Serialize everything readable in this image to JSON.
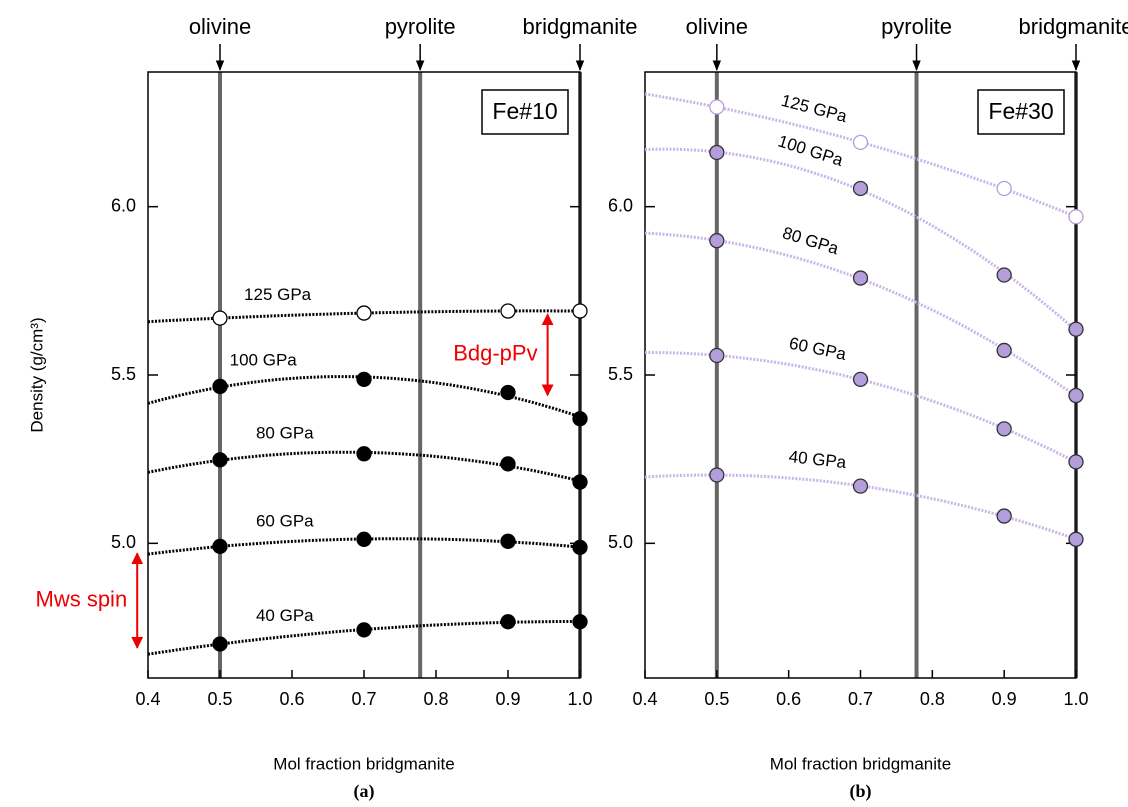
{
  "chart_data": [
    {
      "type": "line",
      "panel_label": "Fe#10",
      "caption": "(a)",
      "xlabel": "Mol fraction bridgmanite",
      "ylabel": "Density (g/cm³)",
      "x": [
        0.5,
        0.7,
        0.9,
        1.0
      ],
      "series": [
        {
          "name": "125 GPa",
          "color": "#000000",
          "marker": "open",
          "values": [
            5.669,
            5.684,
            5.69,
            5.69
          ]
        },
        {
          "name": "100 GPa",
          "color": "#000000",
          "marker": "filled",
          "values": [
            5.466,
            5.487,
            5.448,
            5.37
          ]
        },
        {
          "name": "80 GPa",
          "color": "#000000",
          "marker": "filled",
          "values": [
            5.248,
            5.266,
            5.236,
            5.182
          ]
        },
        {
          "name": "60 GPa",
          "color": "#000000",
          "marker": "filled",
          "values": [
            4.991,
            5.012,
            5.006,
            4.988
          ]
        },
        {
          "name": "40 GPa",
          "color": "#000000",
          "marker": "filled",
          "values": [
            4.701,
            4.743,
            4.767,
            4.767
          ]
        }
      ],
      "line_color": "#000000",
      "rotate_labels": false,
      "compositions": [
        {
          "label": "olivine",
          "x": 0.5
        },
        {
          "label": "pyrolite",
          "x": 0.778
        },
        {
          "label": "bridgmanite",
          "x": 1.0
        }
      ],
      "annotations": [
        {
          "text": "Bdg-pPv",
          "x": 0.955,
          "y": [
            5.44,
            5.68
          ]
        },
        {
          "text": "Mws spin",
          "x": 0.385,
          "y": [
            4.69,
            4.97
          ]
        }
      ],
      "xlim": [
        0.4,
        1.0
      ],
      "ylim": [
        4.6,
        6.4
      ],
      "xticks": [
        0.4,
        0.5,
        0.6,
        0.7,
        0.8,
        0.9,
        {
          "value": 1,
          "label": "1.0"
        }
      ],
      "yticks": [
        {
          "value": 5,
          "label": "5.0"
        },
        5.5,
        {
          "value": 6,
          "label": "6.0"
        }
      ]
    },
    {
      "type": "line",
      "panel_label": "Fe#30",
      "caption": "(b)",
      "xlabel": "Mol fraction bridgmanite",
      "x": [
        0.5,
        0.7,
        0.9,
        1.0
      ],
      "series": [
        {
          "name": "125 GPa",
          "color": "#b39ddb",
          "marker": "open",
          "values": [
            6.296,
            6.191,
            6.054,
            5.97
          ]
        },
        {
          "name": "100 GPa",
          "color": "#b39ddb",
          "marker": "filled",
          "values": [
            6.161,
            6.054,
            5.797,
            5.636
          ]
        },
        {
          "name": "80 GPa",
          "color": "#b39ddb",
          "marker": "filled",
          "values": [
            5.899,
            5.788,
            5.573,
            5.439
          ]
        },
        {
          "name": "60 GPa",
          "color": "#b39ddb",
          "marker": "filled",
          "values": [
            5.558,
            5.487,
            5.34,
            5.242
          ]
        },
        {
          "name": "40 GPa",
          "color": "#b39ddb",
          "marker": "filled",
          "values": [
            5.203,
            5.17,
            5.081,
            5.012
          ]
        }
      ],
      "line_color": "#c9b6e8",
      "rotate_labels": true,
      "compositions": [
        {
          "label": "olivine",
          "x": 0.5
        },
        {
          "label": "pyrolite",
          "x": 0.778
        },
        {
          "label": "bridgmanite",
          "x": 1.0
        }
      ],
      "xlim": [
        0.4,
        1.0
      ],
      "ylim": [
        4.6,
        6.4
      ],
      "xticks": [
        0.4,
        0.5,
        0.6,
        0.7,
        0.8,
        0.9,
        {
          "value": 1,
          "label": "1.0"
        }
      ],
      "yticks": [
        {
          "value": 5,
          "label": "5.0"
        },
        5.5,
        {
          "value": 6,
          "label": "6.0"
        }
      ]
    }
  ]
}
